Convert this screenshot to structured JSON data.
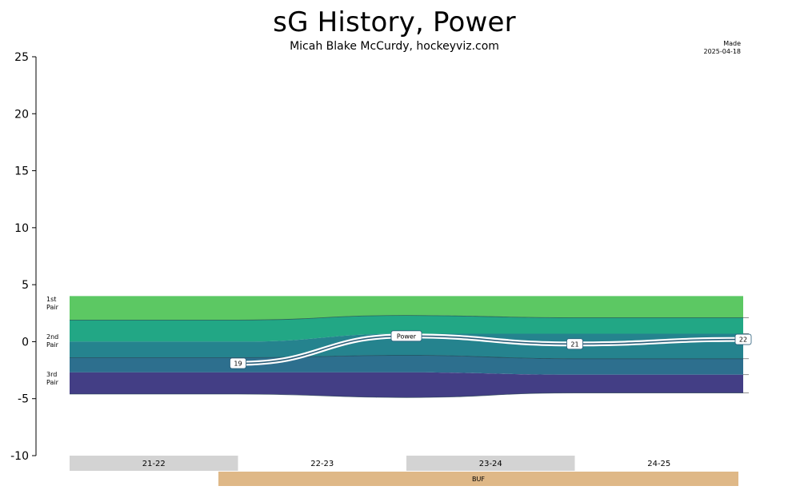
{
  "header": {
    "title": "sG History, Power",
    "subtitle": "Micah Blake McCurdy, hockeyviz.com",
    "made_label": "Made",
    "made_date": "2025-04-18"
  },
  "chart_data": {
    "type": "area",
    "ylim": [
      -10,
      25
    ],
    "yticks": [
      25,
      20,
      15,
      10,
      5,
      0,
      -5,
      -10
    ],
    "grid": false,
    "band_labels": [
      {
        "line1": "1st",
        "line2": "Pair",
        "y": 3.4
      },
      {
        "line1": "2nd",
        "line2": "Pair",
        "y": 0.1
      },
      {
        "line1": "3rd",
        "line2": "Pair",
        "y": -3.2
      }
    ],
    "seasons": [
      "21-22",
      "22-23",
      "23-24",
      "24-25"
    ],
    "bands": {
      "x": [
        0.5,
        1.5,
        2.5,
        3.5,
        4.5
      ],
      "top": [
        4.0,
        4.0,
        4.0,
        4.0,
        4.0
      ],
      "b1": [
        1.9,
        1.9,
        2.3,
        2.1,
        2.1
      ],
      "b2": [
        0.0,
        0.0,
        0.7,
        0.7,
        0.7
      ],
      "b3": [
        -1.4,
        -1.4,
        -1.2,
        -1.5,
        -1.5
      ],
      "b4": [
        -2.7,
        -2.7,
        -2.7,
        -2.9,
        -2.9
      ],
      "bottom": [
        -4.6,
        -4.6,
        -4.9,
        -4.5,
        -4.5
      ],
      "colors": [
        "#5cc863",
        "#22a785",
        "#25838e",
        "#2d6f8e",
        "#433e85"
      ]
    },
    "series": [
      {
        "name": "Power",
        "points": [
          {
            "x": 1.5,
            "y": -1.9,
            "label": "19"
          },
          {
            "x": 2.5,
            "y": 0.5,
            "label": "Power"
          },
          {
            "x": 3.5,
            "y": -0.2,
            "label": "21"
          },
          {
            "x": 4.5,
            "y": 0.2,
            "label": "22"
          }
        ]
      }
    ],
    "teams": [
      {
        "name": "BUF",
        "color": "#dfb887"
      }
    ]
  }
}
